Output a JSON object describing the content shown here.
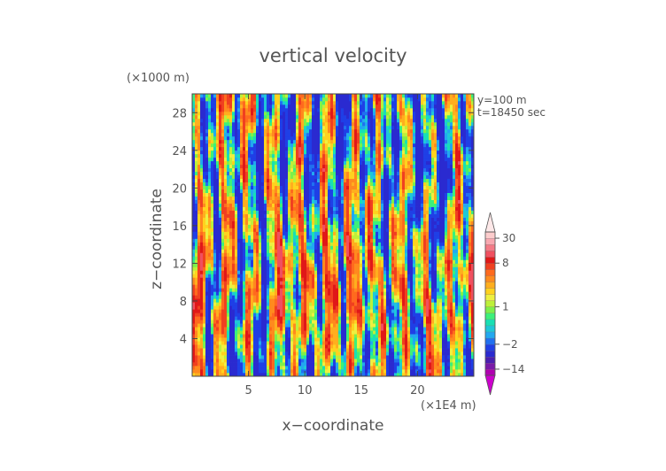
{
  "chart_data": {
    "type": "heatmap",
    "title": "vertical velocity",
    "xlabel": "x−coordinate",
    "ylabel": "z−coordinate",
    "x_unit_label": "(×1E4 m)",
    "y_unit_label": "(×1000 m)",
    "annotations": [
      "y=100 m",
      "t=18450 sec"
    ],
    "xlim": [
      0,
      25
    ],
    "ylim": [
      0,
      30
    ],
    "x_ticks": [
      5,
      10,
      15,
      20
    ],
    "y_ticks": [
      4,
      8,
      12,
      16,
      20,
      24,
      28
    ],
    "colorbar": {
      "tick_labels": [
        "30",
        "8",
        "1",
        "−2",
        "−14"
      ],
      "tick_values": [
        30,
        8,
        1,
        -2,
        -14
      ],
      "extend": "both",
      "levels": [
        -20,
        -14,
        -10,
        -6,
        -4,
        -2,
        -1.5,
        -1,
        -0.5,
        0,
        0.5,
        1,
        1.5,
        2,
        3,
        4,
        5,
        6,
        8,
        10,
        14,
        20,
        30,
        40
      ],
      "colors": [
        "#b000b0",
        "#7a1aa8",
        "#4b1fb0",
        "#2a2ad0",
        "#1f3fe6",
        "#2070f0",
        "#22a8f0",
        "#1ec8d8",
        "#18e0b4",
        "#3cf07a",
        "#7ef04a",
        "#bdf03a",
        "#eef040",
        "#ffd21e",
        "#ffae1e",
        "#ff8a1e",
        "#ff6a1e",
        "#f04020",
        "#e01818",
        "#f05060",
        "#f47a86",
        "#f8a8b0",
        "#fccccc"
      ],
      "extend_low_color": "#cc00cc",
      "extend_high_color": "#fde8e8"
    }
  }
}
